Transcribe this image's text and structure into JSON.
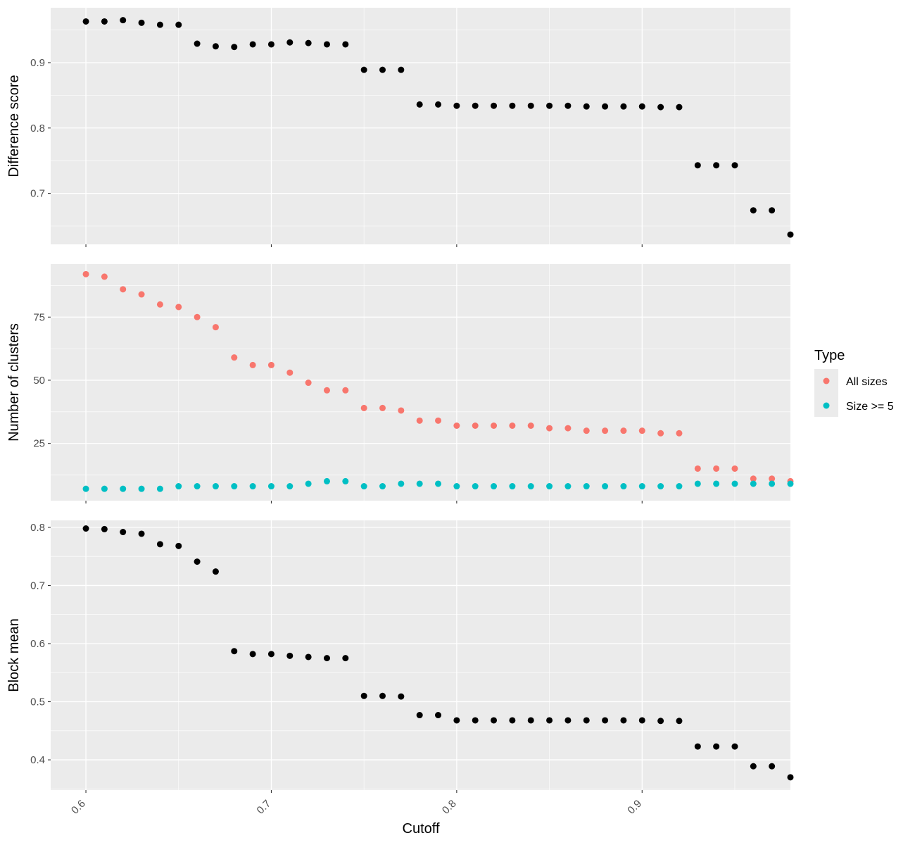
{
  "chart_data": [
    {
      "type": "scatter",
      "ylabel": "Difference score",
      "xlim": [
        0.581,
        0.98
      ],
      "ylim": [
        0.622,
        0.984
      ],
      "x_major_ticks": [
        0.6,
        0.7,
        0.8,
        0.9
      ],
      "y_major_ticks": [
        0.7,
        0.8,
        0.9
      ],
      "y_tick_labels": [
        "0.7",
        "0.8",
        "0.9"
      ],
      "series": [
        {
          "color": "#000000",
          "x": [
            0.6,
            0.61,
            0.62,
            0.63,
            0.64,
            0.65,
            0.66,
            0.67,
            0.68,
            0.69,
            0.7,
            0.71,
            0.72,
            0.73,
            0.74,
            0.75,
            0.76,
            0.77,
            0.78,
            0.79,
            0.8,
            0.81,
            0.82,
            0.83,
            0.84,
            0.85,
            0.86,
            0.87,
            0.88,
            0.89,
            0.9,
            0.91,
            0.92,
            0.93,
            0.94,
            0.95,
            0.96,
            0.97,
            0.98
          ],
          "y": [
            0.963,
            0.963,
            0.965,
            0.961,
            0.958,
            0.958,
            0.929,
            0.925,
            0.924,
            0.928,
            0.928,
            0.931,
            0.93,
            0.928,
            0.928,
            0.889,
            0.889,
            0.889,
            0.836,
            0.836,
            0.834,
            0.834,
            0.834,
            0.834,
            0.834,
            0.834,
            0.834,
            0.833,
            0.833,
            0.833,
            0.833,
            0.832,
            0.832,
            0.743,
            0.743,
            0.743,
            0.674,
            0.674,
            0.637
          ]
        }
      ]
    },
    {
      "type": "scatter",
      "ylabel": "Number of clusters",
      "xlim": [
        0.581,
        0.98
      ],
      "ylim": [
        2.3,
        96
      ],
      "x_major_ticks": [
        0.6,
        0.7,
        0.8,
        0.9
      ],
      "y_major_ticks": [
        25,
        50,
        75
      ],
      "y_tick_labels": [
        "25",
        "50",
        "75"
      ],
      "series": [
        {
          "name": "All sizes",
          "color": "#F8766D",
          "x": [
            0.6,
            0.61,
            0.62,
            0.63,
            0.64,
            0.65,
            0.66,
            0.67,
            0.68,
            0.69,
            0.7,
            0.71,
            0.72,
            0.73,
            0.74,
            0.75,
            0.76,
            0.77,
            0.78,
            0.79,
            0.8,
            0.81,
            0.82,
            0.83,
            0.84,
            0.85,
            0.86,
            0.87,
            0.88,
            0.89,
            0.9,
            0.91,
            0.92,
            0.93,
            0.94,
            0.95,
            0.96,
            0.97,
            0.98
          ],
          "y": [
            92,
            91,
            86,
            84,
            80,
            79,
            75,
            71,
            59,
            56,
            56,
            53,
            49,
            46,
            46,
            39,
            39,
            38,
            34,
            34,
            32,
            32,
            32,
            32,
            32,
            31,
            31,
            30,
            30,
            30,
            30,
            29,
            29,
            15,
            15,
            15,
            11,
            11,
            10
          ]
        },
        {
          "name": "Size >= 5",
          "color": "#00BFC4",
          "x": [
            0.6,
            0.61,
            0.62,
            0.63,
            0.64,
            0.65,
            0.66,
            0.67,
            0.68,
            0.69,
            0.7,
            0.71,
            0.72,
            0.73,
            0.74,
            0.75,
            0.76,
            0.77,
            0.78,
            0.79,
            0.8,
            0.81,
            0.82,
            0.83,
            0.84,
            0.85,
            0.86,
            0.87,
            0.88,
            0.89,
            0.9,
            0.91,
            0.92,
            0.93,
            0.94,
            0.95,
            0.96,
            0.97,
            0.98
          ],
          "y": [
            7,
            7,
            7,
            7,
            7,
            8,
            8,
            8,
            8,
            8,
            8,
            8,
            9,
            10,
            10,
            8,
            8,
            9,
            9,
            9,
            8,
            8,
            8,
            8,
            8,
            8,
            8,
            8,
            8,
            8,
            8,
            8,
            8,
            9,
            9,
            9,
            9,
            9,
            9
          ]
        }
      ]
    },
    {
      "type": "scatter",
      "ylabel": "Block mean",
      "xlabel": "Cutoff",
      "xlim": [
        0.581,
        0.98
      ],
      "ylim": [
        0.348,
        0.812
      ],
      "x_major_ticks": [
        0.6,
        0.7,
        0.8,
        0.9
      ],
      "x_tick_labels": [
        "0.6",
        "0.7",
        "0.8",
        "0.9"
      ],
      "y_major_ticks": [
        0.4,
        0.5,
        0.6,
        0.7,
        0.8
      ],
      "y_tick_labels": [
        "0.4",
        "0.5",
        "0.6",
        "0.7",
        "0.8"
      ],
      "series": [
        {
          "color": "#000000",
          "x": [
            0.6,
            0.61,
            0.62,
            0.63,
            0.64,
            0.65,
            0.66,
            0.67,
            0.68,
            0.69,
            0.7,
            0.71,
            0.72,
            0.73,
            0.74,
            0.75,
            0.76,
            0.77,
            0.78,
            0.79,
            0.8,
            0.81,
            0.82,
            0.83,
            0.84,
            0.85,
            0.86,
            0.87,
            0.88,
            0.89,
            0.9,
            0.91,
            0.92,
            0.93,
            0.94,
            0.95,
            0.96,
            0.97,
            0.98
          ],
          "y": [
            0.798,
            0.797,
            0.792,
            0.789,
            0.771,
            0.768,
            0.741,
            0.724,
            0.587,
            0.582,
            0.582,
            0.579,
            0.577,
            0.575,
            0.575,
            0.51,
            0.51,
            0.509,
            0.477,
            0.477,
            0.468,
            0.468,
            0.468,
            0.468,
            0.468,
            0.468,
            0.468,
            0.468,
            0.468,
            0.468,
            0.468,
            0.467,
            0.467,
            0.423,
            0.423,
            0.423,
            0.389,
            0.389,
            0.37
          ]
        }
      ]
    }
  ],
  "legend": {
    "title": "Type",
    "items": [
      {
        "label": "All sizes",
        "color": "#F8766D"
      },
      {
        "label": "Size >= 5",
        "color": "#00BFC4"
      }
    ]
  },
  "style": {
    "panel_background": "#EBEBEB",
    "grid_color": "#FFFFFF",
    "tick_color": "#333333"
  }
}
